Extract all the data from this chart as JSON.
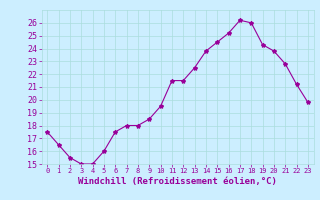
{
  "x": [
    0,
    1,
    2,
    3,
    4,
    5,
    6,
    7,
    8,
    9,
    10,
    11,
    12,
    13,
    14,
    15,
    16,
    17,
    18,
    19,
    20,
    21,
    22,
    23
  ],
  "y": [
    17.5,
    16.5,
    15.5,
    15.0,
    15.0,
    16.0,
    17.5,
    18.0,
    18.0,
    18.5,
    19.5,
    21.5,
    21.5,
    22.5,
    23.8,
    24.5,
    25.2,
    26.2,
    26.0,
    24.3,
    23.8,
    22.8,
    21.2,
    19.8
  ],
  "line_color": "#990099",
  "marker": "*",
  "marker_size": 3,
  "bg_color": "#cceeff",
  "grid_color": "#aadddd",
  "xlabel": "Windchill (Refroidissement éolien,°C)",
  "xlabel_color": "#990099",
  "xlabel_fontsize": 6.5,
  "tick_color": "#990099",
  "ytick_fontsize": 6.0,
  "xtick_fontsize": 5.0,
  "ylim": [
    15,
    27
  ],
  "yticks": [
    15,
    16,
    17,
    18,
    19,
    20,
    21,
    22,
    23,
    24,
    25,
    26
  ],
  "xlim": [
    -0.5,
    23.5
  ],
  "xticks": [
    0,
    1,
    2,
    3,
    4,
    5,
    6,
    7,
    8,
    9,
    10,
    11,
    12,
    13,
    14,
    15,
    16,
    17,
    18,
    19,
    20,
    21,
    22,
    23
  ]
}
